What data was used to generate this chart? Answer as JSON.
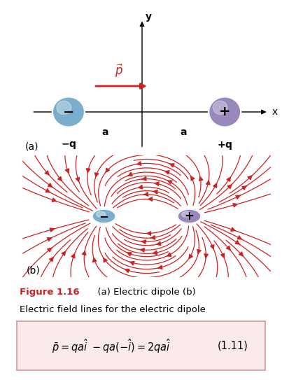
{
  "bg_color": "#f0edda",
  "white_bg": "#ffffff",
  "red_color": "#cc2222",
  "blue_charge_color": "#7aaecc",
  "purple_charge_color": "#9988bb",
  "charge_edge_color": "#444444",
  "fig_width": 4.03,
  "fig_height": 5.43,
  "formula_bg": "#faeaea",
  "formula_border": "#cc9999",
  "caption_red": "#cc2222",
  "caption_bold": "Figure 1.16",
  "caption_line1": "  (a) Electric dipole (b)",
  "caption_line2": "Electric field lines for the electric dipole",
  "equation_number": "(1.11)"
}
